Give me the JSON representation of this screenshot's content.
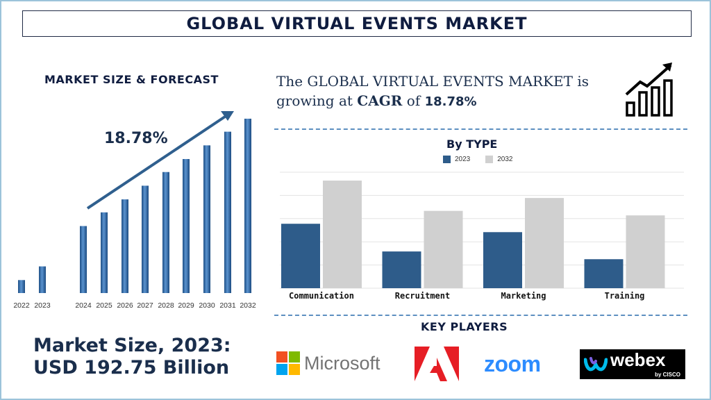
{
  "title": "GLOBAL VIRTUAL EVENTS MARKET",
  "left_panel": {
    "heading": "MARKET SIZE & FORECAST",
    "cagr_label": "18.78%",
    "market_size_line1": "Market Size, 2023:",
    "market_size_line2": "USD 192.75 Billion"
  },
  "cagr_statement": {
    "prefix": "The GLOBAL VIRTUAL EVENTS MARKET is growing at",
    "cagr_word": "CAGR",
    "of_word": "of",
    "value": "18.78%"
  },
  "by_type": {
    "heading": "By TYPE"
  },
  "key_players": {
    "heading": "KEY PLAYERS",
    "logos": [
      {
        "name": "Microsoft",
        "icon": "microsoft-logo"
      },
      {
        "name": "Adobe",
        "icon": "adobe-logo"
      },
      {
        "name": "zoom",
        "icon": "zoom-logo"
      },
      {
        "name": "webex",
        "sub": "by CISCO",
        "icon": "webex-logo"
      }
    ]
  },
  "colors": {
    "dark_blue": "#2e5c8a",
    "light_gray": "#d0d0d0",
    "navy": "#1a2e4c",
    "bar_blue": "#3a6fa8"
  },
  "chart_data": [
    {
      "type": "bar",
      "title": "MARKET SIZE & FORECAST",
      "categories": [
        "2022",
        "2023",
        "2024",
        "2025",
        "2026",
        "2027",
        "2028",
        "2029",
        "2030",
        "2031",
        "2032"
      ],
      "values": [
        19,
        39,
        98,
        118,
        137,
        157,
        177,
        196,
        216,
        236,
        255
      ],
      "annotation": "18.78%",
      "grid": false,
      "ylim": [
        0,
        260
      ]
    },
    {
      "type": "bar",
      "title": "By TYPE",
      "categories": [
        "Communication",
        "Recruitment",
        "Marketing",
        "Training"
      ],
      "series": [
        {
          "name": "2023",
          "values": [
            100,
            57,
            87,
            45
          ],
          "color": "#2e5c8a"
        },
        {
          "name": "2032",
          "values": [
            167,
            120,
            140,
            113
          ],
          "color": "#d0d0d0"
        }
      ],
      "ylim": [
        0,
        180
      ],
      "grid": true,
      "legend": "top-center"
    }
  ]
}
